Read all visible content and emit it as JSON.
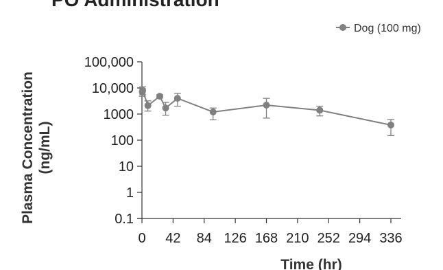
{
  "chart_data": {
    "type": "line",
    "title": "PO Administration",
    "xlabel": "Time (hr)",
    "ylabel": "Plasma Concentration (ng/mL)",
    "ylabel_lines": [
      "Plasma Concentration",
      "(ng/mL)"
    ],
    "x_ticks": [
      0,
      42,
      84,
      126,
      168,
      210,
      252,
      294,
      336
    ],
    "x_tick_labels": [
      "0",
      "42",
      "84",
      "126",
      "168",
      "210",
      "252",
      "294",
      "336"
    ],
    "xlim": [
      0,
      336
    ],
    "y_scale": "log",
    "y_ticks": [
      0.1,
      1,
      10,
      100,
      1000,
      10000,
      100000
    ],
    "y_tick_labels": [
      "0.1",
      "1",
      "10",
      "100",
      "1000",
      "10,000",
      "100,000"
    ],
    "ylim": [
      0.1,
      100000
    ],
    "grid": false,
    "legend_position": "top-right",
    "series": [
      {
        "name": "Dog (100 mg)",
        "color": "#808080",
        "x": [
          0.5,
          1,
          8,
          24,
          32,
          48,
          96,
          168,
          240,
          336
        ],
        "y": [
          7000,
          8000,
          2100,
          4800,
          1700,
          4000,
          1200,
          2200,
          1400,
          380
        ],
        "err_lower": [
          4800,
          5500,
          1300,
          4100,
          900,
          2000,
          600,
          700,
          850,
          150
        ],
        "err_upper": [
          9500,
          11000,
          3200,
          5500,
          2800,
          6200,
          1700,
          4000,
          2000,
          620
        ]
      }
    ]
  }
}
